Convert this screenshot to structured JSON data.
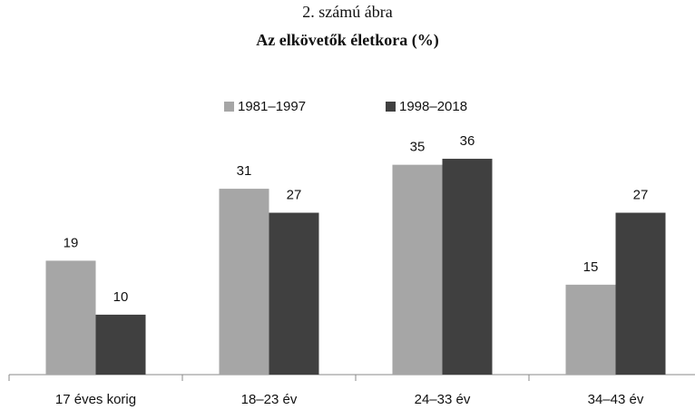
{
  "chart_data": {
    "type": "bar",
    "title": "2. számú ábra",
    "subtitle": "Az elkövetők életkora (%)",
    "categories": [
      "17 éves korig",
      "18–23 év",
      "24–33 év",
      "34–43 év"
    ],
    "series": [
      {
        "name": "1981–1997",
        "color": "#a6a6a6",
        "values": [
          19,
          31,
          35,
          15
        ]
      },
      {
        "name": "1998–2018",
        "color": "#404040",
        "values": [
          10,
          27,
          36,
          27
        ]
      }
    ],
    "legend": "top"
  }
}
